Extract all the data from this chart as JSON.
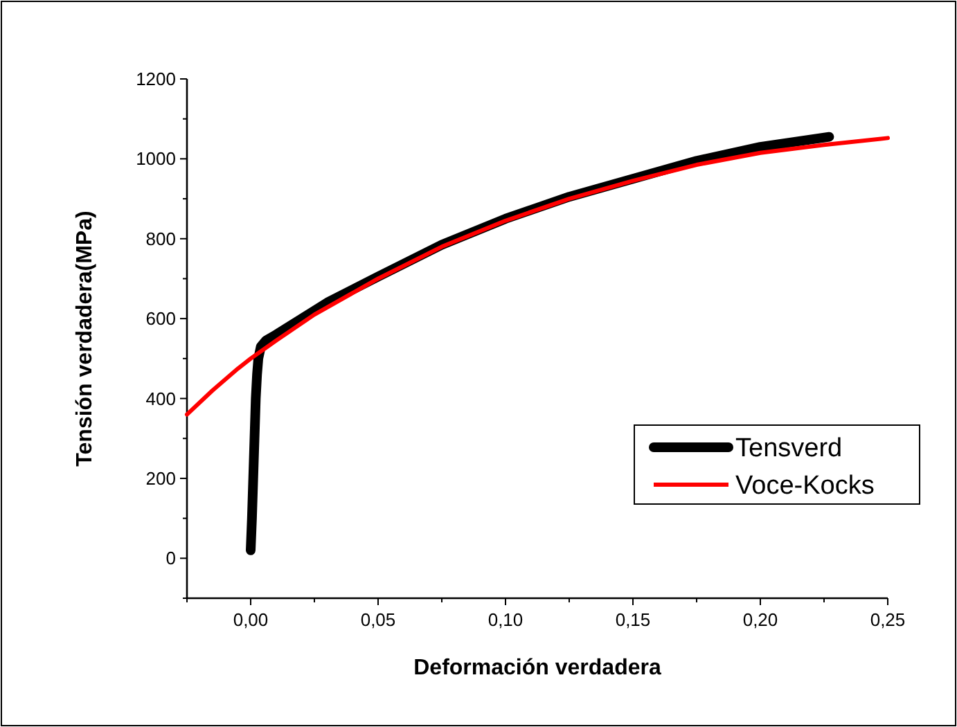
{
  "chart_data": {
    "type": "line",
    "xlabel": "Deformación verdadera",
    "ylabel": "Tensión verdadera(MPa)",
    "xlim": [
      -0.025,
      0.25
    ],
    "ylim": [
      -100,
      1200
    ],
    "xticks": [
      {
        "value": -0.025,
        "label": null
      },
      {
        "value": 0,
        "label": "0,00"
      },
      {
        "value": 0.025,
        "label": null
      },
      {
        "value": 0.05,
        "label": "0,05"
      },
      {
        "value": 0.075,
        "label": null
      },
      {
        "value": 0.1,
        "label": "0,10"
      },
      {
        "value": 0.125,
        "label": null
      },
      {
        "value": 0.15,
        "label": "0,15"
      },
      {
        "value": 0.175,
        "label": null
      },
      {
        "value": 0.2,
        "label": "0,20"
      },
      {
        "value": 0.225,
        "label": null
      },
      {
        "value": 0.25,
        "label": "0,25"
      }
    ],
    "yticks": [
      {
        "value": -100,
        "label": null
      },
      0,
      {
        "value": 100,
        "label": null
      },
      200,
      {
        "value": 300,
        "label": null
      },
      400,
      {
        "value": 500,
        "label": null
      },
      600,
      {
        "value": 700,
        "label": null
      },
      800,
      {
        "value": 900,
        "label": null
      },
      1000,
      {
        "value": 1100,
        "label": null
      },
      1200
    ],
    "grid": false,
    "legend": "bottom right",
    "marker": "none",
    "line_style": "solid",
    "series": [
      {
        "name": "Tensverd",
        "color": "#000000",
        "x": [
          0,
          0.0005,
          0.001,
          0.0015,
          0.002,
          0.0025,
          0.003,
          0.004,
          0.006,
          0.01,
          0.02,
          0.03,
          0.05,
          0.075,
          0.1,
          0.125,
          0.15,
          0.175,
          0.2,
          0.227
        ],
        "values": [
          20,
          100,
          200,
          300,
          400,
          460,
          500,
          530,
          545,
          560,
          600,
          640,
          705,
          785,
          850,
          905,
          950,
          995,
          1030,
          1055
        ]
      },
      {
        "name": "Voce-Kocks",
        "color": "#ff0000",
        "x": [
          -0.025,
          -0.015,
          -0.005,
          0,
          0.01,
          0.025,
          0.05,
          0.075,
          0.1,
          0.125,
          0.15,
          0.175,
          0.2,
          0.225,
          0.25
        ],
        "values": [
          360,
          420,
          475,
          500,
          545,
          610,
          700,
          780,
          845,
          900,
          945,
          985,
          1015,
          1035,
          1052
        ]
      }
    ]
  }
}
